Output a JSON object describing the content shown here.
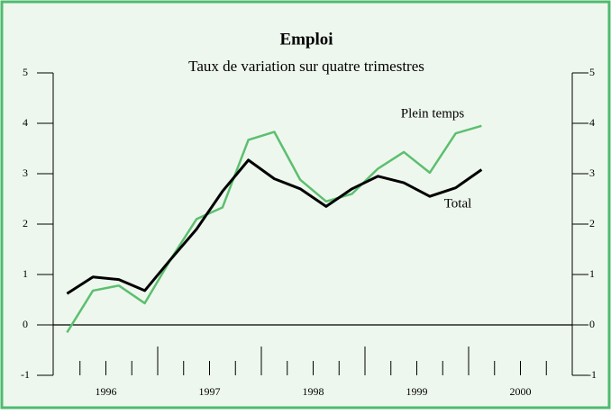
{
  "chart_data": {
    "type": "line",
    "title": "Emploi",
    "subtitle": "Taux de variation sur quatre trimestres",
    "x": [
      1996.125,
      1996.375,
      1996.625,
      1996.875,
      1997.125,
      1997.375,
      1997.625,
      1997.875,
      1998.125,
      1998.375,
      1998.625,
      1998.875,
      1999.125,
      1999.375,
      1999.625,
      1999.875,
      2000.125
    ],
    "series": [
      {
        "name": "Plein temps",
        "color": "#5cbf6f",
        "values": [
          -0.15,
          0.68,
          0.78,
          0.43,
          1.3,
          2.1,
          2.33,
          3.67,
          3.83,
          2.88,
          2.45,
          2.6,
          3.1,
          3.43,
          3.02,
          3.8,
          3.95
        ]
      },
      {
        "name": "Total",
        "color": "#000000",
        "values": [
          0.62,
          0.95,
          0.9,
          0.68,
          1.3,
          1.9,
          2.65,
          3.27,
          2.9,
          2.7,
          2.35,
          2.7,
          2.95,
          2.82,
          2.55,
          2.72,
          3.08
        ]
      }
    ],
    "xlim": [
      1996,
      2001
    ],
    "xticks": [
      {
        "value": 1996.5,
        "label": "1996"
      },
      {
        "value": 1997.5,
        "label": "1997"
      },
      {
        "value": 1998.5,
        "label": "1998"
      },
      {
        "value": 1999.5,
        "label": "1999"
      },
      {
        "value": 2000.5,
        "label": "2000"
      }
    ],
    "ylim": [
      -1,
      5
    ],
    "yticks": [
      -1,
      0,
      1,
      2,
      3,
      4,
      5
    ],
    "y2lim": [
      -1,
      5
    ],
    "y2ticks": [
      -1,
      0,
      1,
      2,
      3,
      4,
      5
    ]
  }
}
